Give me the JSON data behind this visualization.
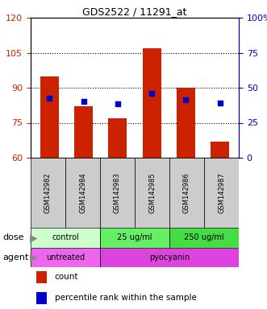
{
  "title": "GDS2522 / 11291_at",
  "categories": [
    "GSM142982",
    "GSM142984",
    "GSM142983",
    "GSM142985",
    "GSM142986",
    "GSM142987"
  ],
  "bar_bottoms": [
    60,
    60,
    60,
    60,
    60,
    60
  ],
  "bar_tops": [
    95,
    82,
    77,
    107,
    90,
    67
  ],
  "blue_values": [
    85.5,
    84.0,
    83.0,
    87.5,
    85.0,
    83.5
  ],
  "ylim_left": [
    60,
    120
  ],
  "ylim_right": [
    0,
    100
  ],
  "yticks_left": [
    60,
    75,
    90,
    105,
    120
  ],
  "yticks_right": [
    0,
    25,
    50,
    75,
    100
  ],
  "ytick_labels_right": [
    "0",
    "25",
    "50",
    "75",
    "100%"
  ],
  "bar_color": "#cc2200",
  "blue_color": "#0000cc",
  "bar_width": 0.55,
  "dose_groups": [
    {
      "label": "control",
      "cols": [
        0,
        1
      ],
      "color": "#ccffcc"
    },
    {
      "label": "25 ug/ml",
      "cols": [
        2,
        3
      ],
      "color": "#66ee66"
    },
    {
      "label": "250 ug/ml",
      "cols": [
        4,
        5
      ],
      "color": "#44dd44"
    }
  ],
  "agent_groups": [
    {
      "label": "untreated",
      "cols": [
        0,
        1
      ],
      "color": "#ee66ee"
    },
    {
      "label": "pyocyanin",
      "cols": [
        2,
        3,
        4,
        5
      ],
      "color": "#dd44dd"
    }
  ],
  "dose_label": "dose",
  "agent_label": "agent",
  "legend_count_label": "count",
  "legend_pct_label": "percentile rank within the sample",
  "tick_label_color_left": "#cc2200",
  "tick_label_color_right": "#0000cc",
  "sample_box_color": "#cccccc",
  "figsize": [
    3.31,
    3.84
  ],
  "dpi": 100
}
